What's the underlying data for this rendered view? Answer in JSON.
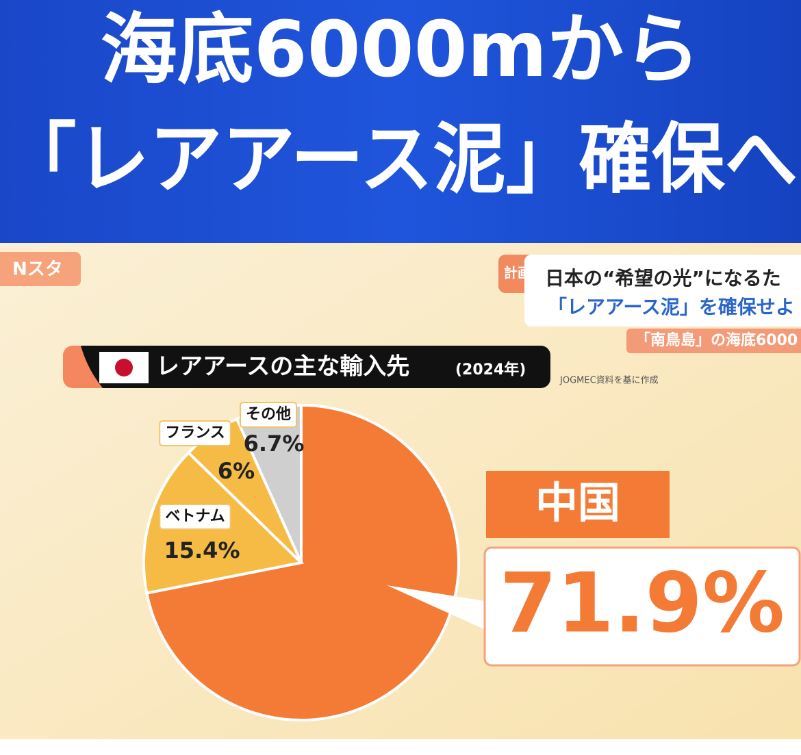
{
  "header": {
    "line1": "海底6000mから",
    "line2": "「レアアース泥」確保へ"
  },
  "logo": "Nスタ",
  "tag": "計画",
  "caption": {
    "line1": "日本の“希望の光”になるた",
    "line2": "「レアアース泥」を確保せよ",
    "line3": "「南鳥島」の海底6000"
  },
  "chart_data": {
    "type": "pie",
    "title": "レアアースの主な輸入先",
    "subtitle": "(2024年)",
    "source": "JOGMEC資料を基に作成",
    "categories": [
      "中国",
      "ベトナム",
      "フランス",
      "その他"
    ],
    "values": [
      71.9,
      15.4,
      6,
      6.7
    ],
    "value_labels": [
      "71.9%",
      "15.4%",
      "6%",
      "6.7%"
    ],
    "colors": [
      "#f47b36",
      "#f6bb45",
      "#f6bb45",
      "#cfcfcf"
    ]
  }
}
